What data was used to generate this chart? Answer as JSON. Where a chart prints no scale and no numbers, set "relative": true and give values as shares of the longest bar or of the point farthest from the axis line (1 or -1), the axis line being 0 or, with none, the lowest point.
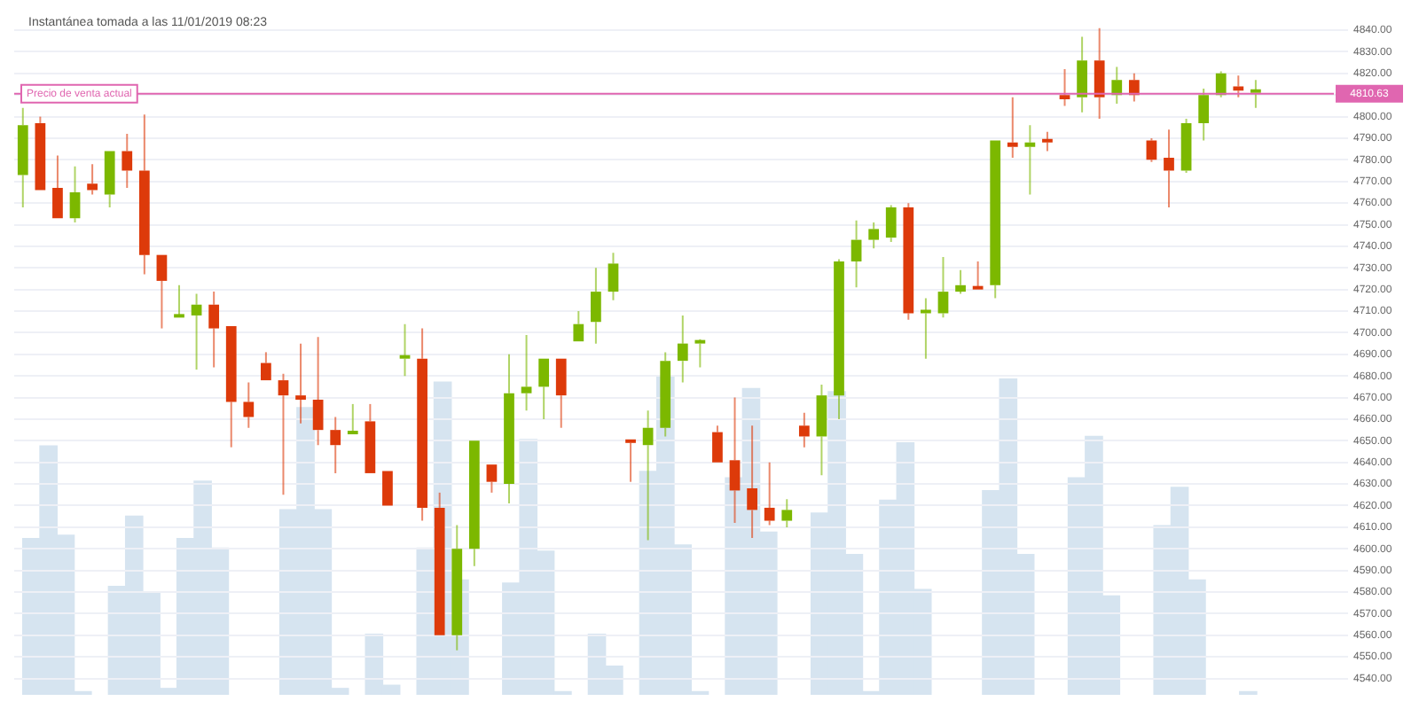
{
  "chart_data": [
    {
      "type": "candlestick",
      "annotations": [
        "Instantánea tomada a las 11/01/2019 08:23",
        "4810.63"
      ],
      "categories": [
        null,
        null,
        null,
        null,
        null,
        null,
        null,
        null,
        null,
        null,
        null,
        null,
        null,
        null,
        null,
        null,
        null,
        null,
        null,
        null,
        null,
        null,
        null,
        null,
        null,
        null,
        null,
        null,
        null,
        null,
        null,
        null,
        null,
        null,
        null,
        null,
        null,
        null,
        null,
        null,
        null,
        null,
        null,
        null,
        null,
        null,
        null,
        null,
        null,
        null,
        null,
        null,
        null,
        null,
        null,
        null,
        null,
        null,
        null,
        null,
        null,
        null,
        null,
        null,
        null,
        null,
        null,
        null,
        null,
        null,
        null,
        null,
        null,
        null,
        null,
        null,
        null
      ],
      "ohlc": [
        [
          4773,
          4804,
          4758,
          4796
        ],
        [
          4797,
          4800,
          4766,
          4766
        ],
        [
          4767,
          4782,
          4753,
          4753
        ],
        [
          4753,
          4777,
          4751,
          4765
        ],
        [
          4769,
          4778,
          4764,
          4766
        ],
        [
          4764,
          4784,
          4758,
          4784
        ],
        [
          4784,
          4792,
          4767,
          4775
        ],
        [
          4775,
          4801,
          4727,
          4736
        ],
        [
          4736,
          4736,
          4702,
          4724
        ],
        [
          4707,
          4722,
          4707,
          4708
        ],
        [
          4708,
          4718,
          4683,
          4713
        ],
        [
          4713,
          4719,
          4684,
          4702
        ],
        [
          4703,
          4703,
          4647,
          4668
        ],
        [
          4668,
          4677,
          4656,
          4661
        ],
        [
          4686,
          4691,
          4678,
          4678
        ],
        [
          4678,
          4681,
          4625,
          4671
        ],
        [
          4671,
          4695,
          4658,
          4669
        ],
        [
          4669,
          4698,
          4648,
          4655
        ],
        [
          4655,
          4661,
          4635,
          4648
        ],
        [
          4653,
          4667,
          4653,
          4654
        ],
        [
          4659,
          4667,
          4635,
          4635
        ],
        [
          4636,
          4636,
          4620,
          4620
        ],
        [
          4688,
          4704,
          4680,
          4689
        ],
        [
          4688,
          4702,
          4613,
          4619
        ],
        [
          4619,
          4626,
          4560,
          4560
        ],
        [
          4560,
          4611,
          4553,
          4600
        ],
        [
          4600,
          4650,
          4592,
          4650
        ],
        [
          4639,
          4639,
          4626,
          4631
        ],
        [
          4630,
          4690,
          4621,
          4672
        ],
        [
          4672,
          4699,
          4664,
          4675
        ],
        [
          4675,
          4688,
          4660,
          4688
        ],
        [
          4688,
          4688,
          4656,
          4671
        ],
        [
          4696,
          4710,
          4696,
          4704
        ],
        [
          4705,
          4730,
          4695,
          4719
        ],
        [
          4719,
          4737,
          4715,
          4732
        ],
        [
          4650,
          4650,
          4631,
          4649
        ],
        [
          4648,
          4664,
          4604,
          4656
        ],
        [
          4656,
          4691,
          4652,
          4687
        ],
        [
          4687,
          4708,
          4677,
          4695
        ],
        [
          4695,
          4697,
          4684,
          4696
        ],
        [
          4654,
          4657,
          4640,
          4640
        ],
        [
          4641,
          4670,
          4612,
          4627
        ],
        [
          4628,
          4657,
          4605,
          4618
        ],
        [
          4619,
          4640,
          4611,
          4613
        ],
        [
          4613,
          4623,
          4610,
          4618
        ],
        [
          4657,
          4663,
          4647,
          4652
        ],
        [
          4652,
          4676,
          4634,
          4671
        ],
        [
          4671,
          4734,
          4660,
          4733
        ],
        [
          4733,
          4752,
          4721,
          4743
        ],
        [
          4743,
          4751,
          4739,
          4748
        ],
        [
          4744,
          4759,
          4742,
          4758
        ],
        [
          4758,
          4760,
          4706,
          4709
        ],
        [
          4709,
          4716,
          4688,
          4710
        ],
        [
          4709,
          4735,
          4707,
          4719
        ],
        [
          4719,
          4729,
          4718,
          4722
        ],
        [
          4721,
          4733,
          4720,
          4720
        ],
        [
          4722,
          4789,
          4716,
          4789
        ],
        [
          4788,
          4809,
          4781,
          4786
        ],
        [
          4786,
          4796,
          4764,
          4788
        ],
        [
          4789,
          4793,
          4784,
          4788
        ],
        [
          4810,
          4822,
          4805,
          4808
        ],
        [
          4809,
          4837,
          4802,
          4826
        ],
        [
          4826,
          4841,
          4799,
          4809
        ],
        [
          4810,
          4823,
          4806,
          4817
        ],
        [
          4817,
          4820,
          4807,
          4810
        ],
        [
          4789,
          4790,
          4779,
          4780
        ],
        [
          4781,
          4794,
          4758,
          4775
        ],
        [
          4775,
          4799,
          4774,
          4797
        ],
        [
          4797,
          4813,
          4789,
          4810
        ],
        [
          4810,
          4821,
          4809,
          4820
        ],
        [
          4814,
          4819,
          4809,
          4812
        ],
        [
          4811,
          4817,
          4804,
          4812
        ],
        null,
        null,
        null,
        null,
        null
      ],
      "colors": [
        "#7cb800",
        "#dd3a0a",
        "#dd3a0a",
        "#7cb800",
        "#dd3a0a",
        "#7cb800",
        "#dd3a0a",
        "#dd3a0a",
        "#dd3a0a",
        "#7cb800",
        "#7cb800",
        "#dd3a0a",
        "#dd3a0a",
        "#dd3a0a",
        "#dd3a0a",
        "#dd3a0a",
        "#dd3a0a",
        "#dd3a0a",
        "#dd3a0a",
        "#7cb800",
        "#dd3a0a",
        "#dd3a0a",
        "#7cb800",
        "#dd3a0a",
        "#dd3a0a",
        "#7cb800",
        "#7cb800",
        "#dd3a0a",
        "#7cb800",
        "#7cb800",
        "#7cb800",
        "#dd3a0a",
        "#7cb800",
        "#7cb800",
        "#7cb800",
        "#dd3a0a",
        "#7cb800",
        "#7cb800",
        "#7cb800",
        "#7cb800",
        "#dd3a0a",
        "#dd3a0a",
        "#dd3a0a",
        "#dd3a0a",
        "#7cb800",
        "#dd3a0a",
        "#7cb800",
        "#7cb800",
        "#7cb800",
        "#7cb800",
        "#7cb800",
        "#dd3a0a",
        "#7cb800",
        "#7cb800",
        "#7cb800",
        "#dd3a0a",
        "#7cb800",
        "#dd3a0a",
        "#7cb800",
        "#dd3a0a",
        "#dd3a0a",
        "#7cb800",
        "#dd3a0a",
        "#7cb800",
        "#dd3a0a",
        "#dd3a0a",
        "#dd3a0a",
        "#7cb800",
        "#7cb800",
        "#7cb800",
        "#dd3a0a",
        "#7cb800",
        null,
        null,
        null,
        null,
        null
      ],
      "ylim": [
        4539,
        4842
      ],
      "yticks": [
        {
          "value": 4540,
          "label": "4540.00"
        },
        {
          "value": 4550,
          "label": "4550.00"
        },
        {
          "value": 4560,
          "label": "4560.00"
        },
        {
          "value": 4570,
          "label": "4570.00"
        },
        {
          "value": 4580,
          "label": "4580.00"
        },
        {
          "value": 4590,
          "label": "4590.00"
        },
        {
          "value": 4600,
          "label": "4600.00"
        },
        {
          "value": 4610,
          "label": "4610.00"
        },
        {
          "value": 4620,
          "label": "4620.00"
        },
        {
          "value": 4630,
          "label": "4630.00"
        },
        {
          "value": 4640,
          "label": "4640.00"
        },
        {
          "value": 4650,
          "label": "4650.00"
        },
        {
          "value": 4660,
          "label": "4660.00"
        },
        {
          "value": 4670,
          "label": "4670.00"
        },
        {
          "value": 4680,
          "label": "4680.00"
        },
        {
          "value": 4690,
          "label": "4690.00"
        },
        {
          "value": 4700,
          "label": "4700.00"
        },
        {
          "value": 4710,
          "label": "4710.00"
        },
        {
          "value": 4720,
          "label": "4720.00"
        },
        {
          "value": 4730,
          "label": "4730.00"
        },
        {
          "value": 4740,
          "label": "4740.00"
        },
        {
          "value": 4750,
          "label": "4750.00"
        },
        {
          "value": 4760,
          "label": "4760.00"
        },
        {
          "value": 4770,
          "label": "4770.00"
        },
        {
          "value": 4780,
          "label": "4780.00"
        },
        {
          "value": 4790,
          "label": "4790.00"
        },
        {
          "value": 4800,
          "label": "4800.00"
        },
        {
          "value": 4810,
          "label": null
        },
        {
          "value": 4820,
          "label": "4820.00"
        },
        {
          "value": 4830,
          "label": "4830.00"
        },
        {
          "value": 4840,
          "label": "4840.00"
        }
      ],
      "ref_lines": [
        {
          "axis": "y",
          "value": 4810.63,
          "label": "Precio de venta actual",
          "color": "#e066b0"
        }
      ],
      "grid": "y",
      "tick_labels": "y",
      "legend": false
    },
    {
      "type": "bar",
      "relative": true,
      "color": "#d6e4f0",
      "categories": [
        null,
        null,
        null,
        null,
        null,
        null,
        null,
        null,
        null,
        null,
        null,
        null,
        null,
        null,
        null,
        null,
        null,
        null,
        null,
        null,
        null,
        null,
        null,
        null,
        null,
        null,
        null,
        null,
        null,
        null,
        null,
        null,
        null,
        null,
        null,
        null,
        null,
        null,
        null,
        null,
        null,
        null,
        null,
        null,
        null,
        null,
        null,
        null,
        null,
        null,
        null,
        null,
        null,
        null,
        null,
        null,
        null,
        null,
        null,
        null,
        null,
        null,
        null,
        null,
        null,
        null,
        null,
        null,
        null,
        null,
        null,
        null,
        null,
        null,
        null,
        null,
        null
      ],
      "values": [
        0.49,
        0.78,
        0.5,
        0.01,
        null,
        0.34,
        0.56,
        0.32,
        0.02,
        0.49,
        0.67,
        0.46,
        null,
        null,
        null,
        0.58,
        0.9,
        0.58,
        0.02,
        null,
        0.19,
        0.03,
        null,
        0.46,
        0.98,
        0.36,
        null,
        null,
        0.35,
        0.8,
        0.45,
        0.01,
        null,
        0.19,
        0.09,
        null,
        0.7,
        1,
        0.47,
        0.01,
        null,
        0.68,
        0.96,
        0.51,
        null,
        null,
        0.57,
        0.95,
        0.44,
        0.01,
        0.61,
        0.79,
        0.33,
        null,
        null,
        null,
        0.64,
        0.99,
        0.44,
        null,
        null,
        0.68,
        0.81,
        0.31,
        null,
        null,
        0.53,
        0.65,
        0.36,
        null,
        null,
        0.01,
        null,
        null,
        null,
        null,
        null
      ]
    }
  ]
}
